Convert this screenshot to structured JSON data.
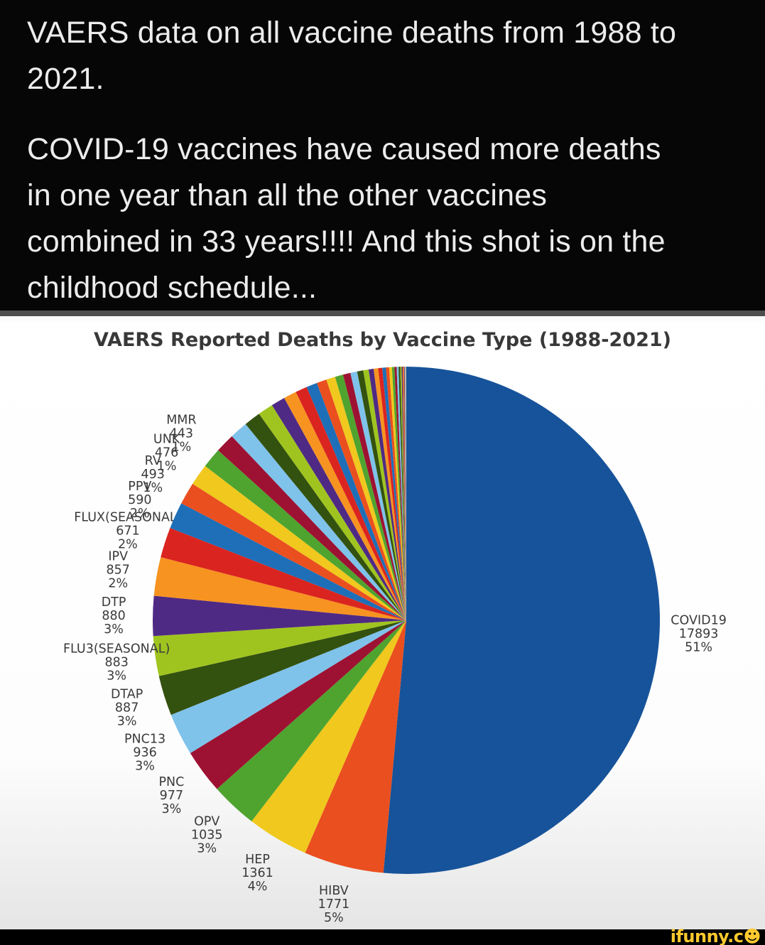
{
  "post": {
    "paragraph1_lines": [
      "VAERS data on all vaccine deaths from 1988 to",
      "2021."
    ],
    "paragraph2_lines": [
      "COVID-19 vaccines have caused more deaths",
      "in one year than all the other vaccines",
      "combined in 33 years!!!! And this shot is on the",
      "childhood schedule..."
    ]
  },
  "chart_data": {
    "type": "pie",
    "title": "VAERS Reported Deaths by Vaccine Type (1988-2021)",
    "start_angle_deg": 90,
    "direction": "clockwise",
    "legend_position": "none",
    "background": "#ffffff",
    "slices": [
      {
        "label": "COVID19",
        "value": 17893,
        "pct": "51%",
        "color": "#17539a"
      },
      {
        "label": "HIBV",
        "value": 1771,
        "pct": "5%",
        "color": "#ea4f1f"
      },
      {
        "label": "HEP",
        "value": 1361,
        "pct": "4%",
        "color": "#f0c81e"
      },
      {
        "label": "OPV",
        "value": 1035,
        "pct": "3%",
        "color": "#4fa32f"
      },
      {
        "label": "PNC",
        "value": 977,
        "pct": "3%",
        "color": "#9d1232"
      },
      {
        "label": "PNC13",
        "value": 936,
        "pct": "3%",
        "color": "#7fc2ea"
      },
      {
        "label": "DTAP",
        "value": 887,
        "pct": "3%",
        "color": "#33510f"
      },
      {
        "label": "FLU3(SEASONAL)",
        "value": 883,
        "pct": "3%",
        "color": "#a0c41f"
      },
      {
        "label": "DTP",
        "value": 880,
        "pct": "3%",
        "color": "#4f2a84"
      },
      {
        "label": "IPV",
        "value": 857,
        "pct": "2%",
        "color": "#f79320"
      },
      {
        "label": "FLUX(SEASONAL)",
        "value": 671,
        "pct": "2%",
        "color": "#da2420"
      },
      {
        "label": "PPV",
        "value": 590,
        "pct": "2%",
        "color": "#1e6fb8"
      },
      {
        "label": "RV",
        "value": 493,
        "pct": "1%",
        "color": "#ea4f1f"
      },
      {
        "label": "UNK",
        "value": 476,
        "pct": "1%",
        "color": "#f0c81e"
      },
      {
        "label": "MMR",
        "value": 443,
        "pct": "1%",
        "color": "#4fa32f"
      }
    ],
    "unlabeled_slices_estimated_values": [
      430,
      400,
      370,
      340,
      310,
      285,
      260,
      240,
      220,
      200,
      180,
      165,
      150,
      135,
      120,
      110,
      100,
      90,
      80,
      70,
      62,
      55,
      48,
      42,
      36,
      30,
      25,
      20,
      16,
      12,
      9,
      7,
      5,
      4,
      3,
      2
    ],
    "palette_cycle": [
      "#ea4f1f",
      "#f0c81e",
      "#4fa32f",
      "#9d1232",
      "#7fc2ea",
      "#33510f",
      "#a0c41f",
      "#4f2a84",
      "#f79320",
      "#da2420",
      "#1e6fb8"
    ],
    "palette_cycle_start_index_for_unlabeled": 3,
    "tail_colors": [
      "#b9a583",
      "#c2b49a",
      "#a99c84",
      "#8d8473",
      "#b9a583",
      "#9a8f7c"
    ]
  },
  "watermark": {
    "text": "ifunny.c",
    "face": "☻"
  }
}
